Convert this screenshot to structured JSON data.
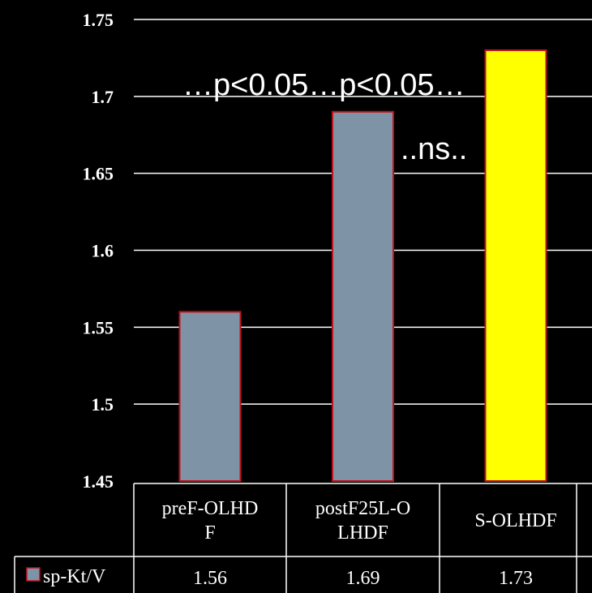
{
  "chart_data": {
    "type": "bar",
    "categories": [
      "preF-OLHDF",
      "postF25L-OLHDF",
      "S-OLHDF"
    ],
    "category_lines": [
      [
        "preF-OLHD",
        "F"
      ],
      [
        "postF25L-O",
        "LHDF"
      ],
      [
        "S-OLHDF"
      ]
    ],
    "series": [
      {
        "name": "sp-Kt/V",
        "values": [
          1.56,
          1.69,
          1.73
        ],
        "value_labels": [
          "1.56",
          "1.69",
          "1.73"
        ]
      }
    ],
    "bar_colors": [
      "#7f93a6",
      "#7f93a6",
      "#ffff00"
    ],
    "bar_border_color": "#c0121a",
    "ylim": [
      1.45,
      1.75
    ],
    "yticks": [
      "1.45",
      "1.5",
      "1.55",
      "1.6",
      "1.65",
      "1.7",
      "1.75"
    ],
    "grid": true,
    "legend": "data-table-left",
    "annotations": [
      {
        "text": "…p<0.05…p<0.05…"
      },
      {
        "text": "..ns.."
      }
    ],
    "colors": {
      "background": "#000000",
      "grid": "#ffffff",
      "text": "#ffffff"
    }
  }
}
